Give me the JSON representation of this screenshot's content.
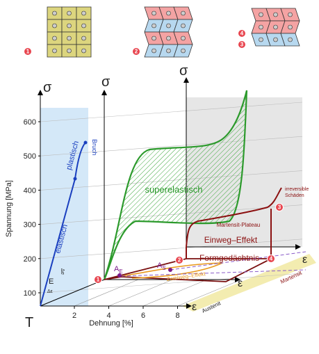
{
  "top": {
    "markers": [
      "1",
      "2",
      "4",
      "3"
    ]
  },
  "axes": {
    "sigma": [
      "σ",
      "σ",
      "σ"
    ],
    "T": "T",
    "epsilon": [
      "ε",
      "ε",
      "ε"
    ],
    "y_label": "Spannung [MPa]",
    "y_ticks": [
      "100",
      "200",
      "300",
      "400",
      "500",
      "600"
    ],
    "x_label": "Dehnung [%]",
    "x_ticks": [
      "2",
      "4",
      "6",
      "8"
    ]
  },
  "labels": {
    "bruch": "Bruch",
    "plastisch": "plastisch",
    "elastisch": "elastisch",
    "E": "E",
    "delta_sigma": "Δσ",
    "delta_eps": "Δε",
    "superelastisch": "superelastisch",
    "plateau": "Martensit-Plateau",
    "einweg": "Einweg–Effekt",
    "formgedaechtnis": "Formgedächtnis",
    "irreversibel": [
      "irreversible",
      "Schäden"
    ],
    "zweiweg": "Zweiweg–Effekt",
    "a_s": {
      "letter": "A",
      "sub": "S"
    },
    "a_e": {
      "letter": "A",
      "sub": "E"
    },
    "martensit": "Martensit",
    "austenit": "Austenit"
  },
  "markers": [
    "1",
    "2",
    "3",
    "4"
  ]
}
